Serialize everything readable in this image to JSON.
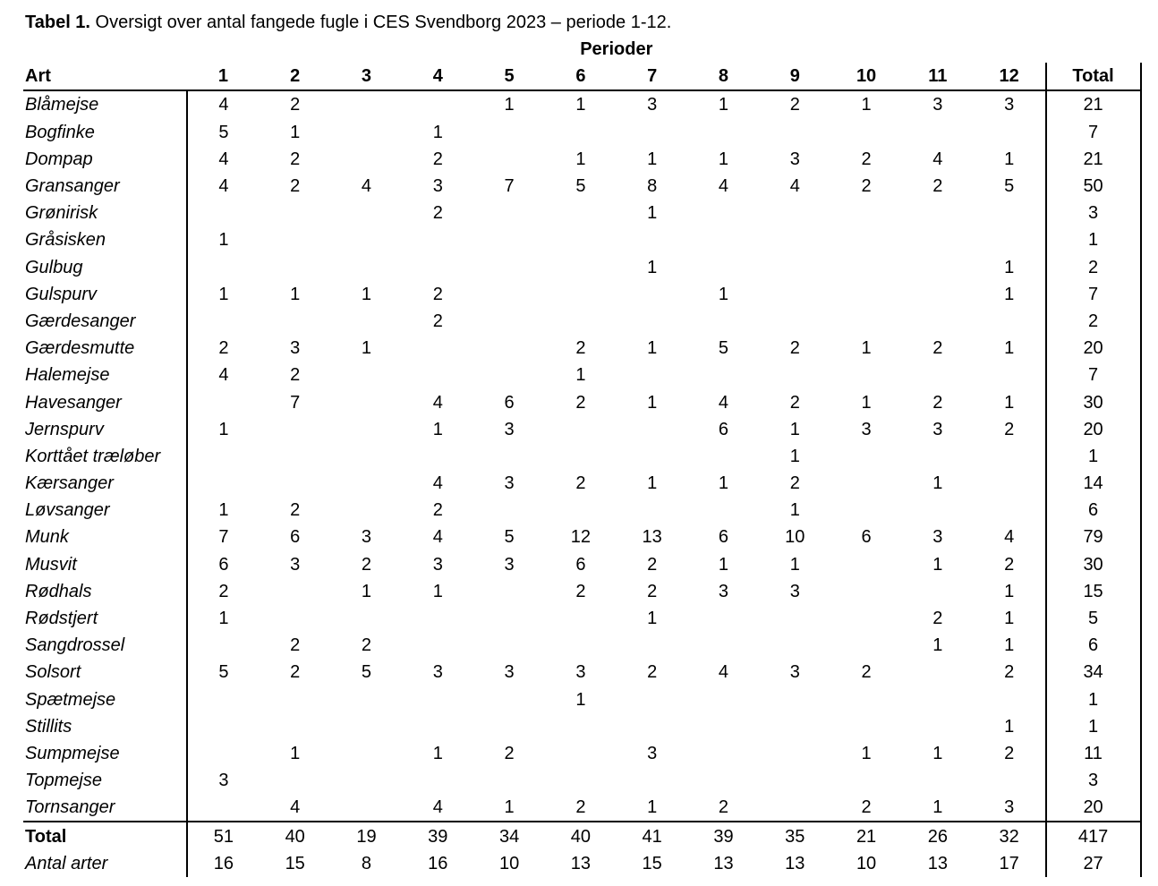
{
  "caption": {
    "label": "Tabel 1.",
    "text": " Oversigt over antal fangede fugle i CES Svendborg 2023 – periode 1-12."
  },
  "table": {
    "group_header": "Perioder",
    "headers": [
      "Art",
      "1",
      "2",
      "3",
      "4",
      "5",
      "6",
      "7",
      "8",
      "9",
      "10",
      "11",
      "12",
      "Total"
    ],
    "rows": [
      [
        "Blåmejse",
        "4",
        "2",
        "",
        "",
        "1",
        "1",
        "3",
        "1",
        "2",
        "1",
        "3",
        "3",
        "21"
      ],
      [
        "Bogfinke",
        "5",
        "1",
        "",
        "1",
        "",
        "",
        "",
        "",
        "",
        "",
        "",
        "",
        "7"
      ],
      [
        "Dompap",
        "4",
        "2",
        "",
        "2",
        "",
        "1",
        "1",
        "1",
        "3",
        "2",
        "4",
        "1",
        "21"
      ],
      [
        "Gransanger",
        "4",
        "2",
        "4",
        "3",
        "7",
        "5",
        "8",
        "4",
        "4",
        "2",
        "2",
        "5",
        "50"
      ],
      [
        "Grønirisk",
        "",
        "",
        "",
        "2",
        "",
        "",
        "1",
        "",
        "",
        "",
        "",
        "",
        "3"
      ],
      [
        "Gråsisken",
        "1",
        "",
        "",
        "",
        "",
        "",
        "",
        "",
        "",
        "",
        "",
        "",
        "1"
      ],
      [
        "Gulbug",
        "",
        "",
        "",
        "",
        "",
        "",
        "1",
        "",
        "",
        "",
        "",
        "1",
        "2"
      ],
      [
        "Gulspurv",
        "1",
        "1",
        "1",
        "2",
        "",
        "",
        "",
        "1",
        "",
        "",
        "",
        "1",
        "7"
      ],
      [
        "Gærdesanger",
        "",
        "",
        "",
        "2",
        "",
        "",
        "",
        "",
        "",
        "",
        "",
        "",
        "2"
      ],
      [
        "Gærdesmutte",
        "2",
        "3",
        "1",
        "",
        "",
        "2",
        "1",
        "5",
        "2",
        "1",
        "2",
        "1",
        "20"
      ],
      [
        "Halemejse",
        "4",
        "2",
        "",
        "",
        "",
        "1",
        "",
        "",
        "",
        "",
        "",
        "",
        "7"
      ],
      [
        "Havesanger",
        "",
        "7",
        "",
        "4",
        "6",
        "2",
        "1",
        "4",
        "2",
        "1",
        "2",
        "1",
        "30"
      ],
      [
        "Jernspurv",
        "1",
        "",
        "",
        "1",
        "3",
        "",
        "",
        "6",
        "1",
        "3",
        "3",
        "2",
        "20"
      ],
      [
        "Korttået træløber",
        "",
        "",
        "",
        "",
        "",
        "",
        "",
        "",
        "1",
        "",
        "",
        "",
        "1"
      ],
      [
        "Kærsanger",
        "",
        "",
        "",
        "4",
        "3",
        "2",
        "1",
        "1",
        "2",
        "",
        "1",
        "",
        "14"
      ],
      [
        "Løvsanger",
        "1",
        "2",
        "",
        "2",
        "",
        "",
        "",
        "",
        "1",
        "",
        "",
        "",
        "6"
      ],
      [
        "Munk",
        "7",
        "6",
        "3",
        "4",
        "5",
        "12",
        "13",
        "6",
        "10",
        "6",
        "3",
        "4",
        "79"
      ],
      [
        "Musvit",
        "6",
        "3",
        "2",
        "3",
        "3",
        "6",
        "2",
        "1",
        "1",
        "",
        "1",
        "2",
        "30"
      ],
      [
        "Rødhals",
        "2",
        "",
        "1",
        "1",
        "",
        "2",
        "2",
        "3",
        "3",
        "",
        "",
        "1",
        "15"
      ],
      [
        "Rødstjert",
        "1",
        "",
        "",
        "",
        "",
        "",
        "1",
        "",
        "",
        "",
        "2",
        "1",
        "5"
      ],
      [
        "Sangdrossel",
        "",
        "2",
        "2",
        "",
        "",
        "",
        "",
        "",
        "",
        "",
        "1",
        "1",
        "6"
      ],
      [
        "Solsort",
        "5",
        "2",
        "5",
        "3",
        "3",
        "3",
        "2",
        "4",
        "3",
        "2",
        "",
        "2",
        "34"
      ],
      [
        "Spætmejse",
        "",
        "",
        "",
        "",
        "",
        "1",
        "",
        "",
        "",
        "",
        "",
        "",
        "1"
      ],
      [
        "Stillits",
        "",
        "",
        "",
        "",
        "",
        "",
        "",
        "",
        "",
        "",
        "",
        "1",
        "1"
      ],
      [
        "Sumpmejse",
        "",
        "1",
        "",
        "1",
        "2",
        "",
        "3",
        "",
        "",
        "1",
        "1",
        "2",
        "11"
      ],
      [
        "Topmejse",
        "3",
        "",
        "",
        "",
        "",
        "",
        "",
        "",
        "",
        "",
        "",
        "",
        "3"
      ],
      [
        "Tornsanger",
        "",
        "4",
        "",
        "4",
        "1",
        "2",
        "1",
        "2",
        "",
        "2",
        "1",
        "3",
        "20"
      ]
    ],
    "total_row": [
      "Total",
      "51",
      "40",
      "19",
      "39",
      "34",
      "40",
      "41",
      "39",
      "35",
      "21",
      "26",
      "32",
      "417"
    ],
    "species_row": [
      "Antal arter",
      "16",
      "15",
      "8",
      "16",
      "10",
      "13",
      "15",
      "13",
      "13",
      "10",
      "13",
      "17",
      "27"
    ]
  }
}
